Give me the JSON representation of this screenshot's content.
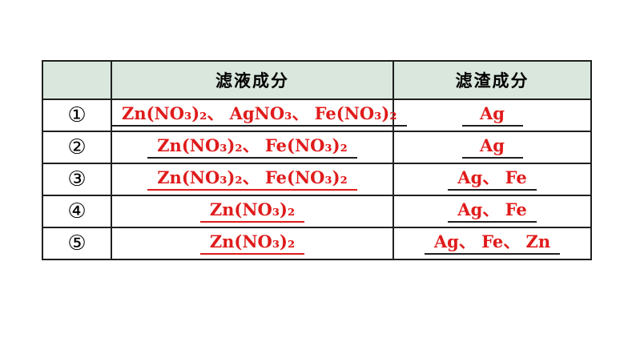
{
  "colors": {
    "formula_red": "#e01b1b",
    "header_bg": "#d9e7dd",
    "border": "#1f1f1f",
    "page_bg": "#ffffff"
  },
  "table": {
    "header": {
      "num": "",
      "filtrate": "滤液成分",
      "residue": "滤渣成分"
    },
    "rows": [
      {
        "num": "①",
        "filtrate": "Zn(NO₃)₂、 AgNO₃、 Fe(NO₃)₂",
        "filtrate_underline": "black",
        "residue": "Ag",
        "residue_underline": "black"
      },
      {
        "num": "②",
        "filtrate": "Zn(NO₃)₂、 Fe(NO₃)₂",
        "filtrate_underline": "black",
        "residue": "Ag",
        "residue_underline": "black"
      },
      {
        "num": "③",
        "filtrate": "Zn(NO₃)₂、 Fe(NO₃)₂",
        "filtrate_underline": "red",
        "residue": "Ag、 Fe",
        "residue_underline": "black"
      },
      {
        "num": "④",
        "filtrate": "Zn(NO₃)₂",
        "filtrate_underline": "red",
        "residue": "Ag、 Fe",
        "residue_underline": "black"
      },
      {
        "num": "⑤",
        "filtrate": "Zn(NO₃)₂",
        "filtrate_underline": "red",
        "residue": "Ag、 Fe、 Zn",
        "residue_underline": "black"
      }
    ]
  }
}
